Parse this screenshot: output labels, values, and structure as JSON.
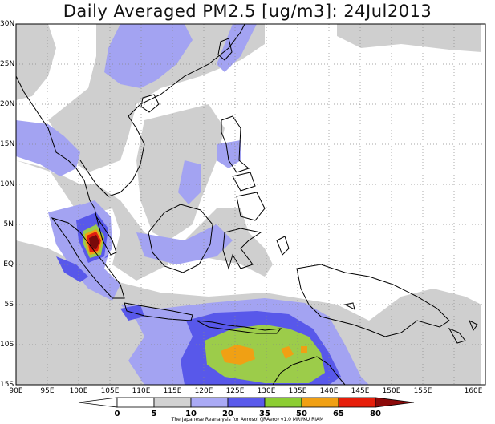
{
  "title": "Daily Averaged PM2.5 [ug/m3]: 24Jul2013",
  "lat_labels": [
    "30N",
    "25N",
    "20N",
    "15N",
    "10N",
    "5N",
    "EQ",
    "5S",
    "10S",
    "15S"
  ],
  "lon_labels": [
    "90E",
    "95E",
    "100E",
    "105E",
    "110E",
    "115E",
    "120E",
    "125E",
    "130E",
    "135E",
    "140E",
    "145E",
    "150E",
    "155E",
    "160E"
  ],
  "colorbar": {
    "labels": [
      "0",
      "5",
      "10",
      "20",
      "35",
      "50",
      "65",
      "80"
    ],
    "colors": [
      "#ffffff",
      "#d2d2d2",
      "#aaaaf5",
      "#5a5aeb",
      "#1e46b4",
      "#8ccd32",
      "#f0a014",
      "#e61e0a",
      "#8c0a0a"
    ]
  },
  "credit": "The Japanese Reanalysis for Aerosol (JRAero) v1.0 MRI/KU RIAM",
  "colors": {
    "gray": "#cfcfcf",
    "light_blue": "#a3a3f2",
    "blue": "#5858ea",
    "green": "#9ccc4a",
    "orange": "#f0a014",
    "red": "#e01e10",
    "dark_red": "#7a0a0a",
    "coast": "#000000"
  }
}
